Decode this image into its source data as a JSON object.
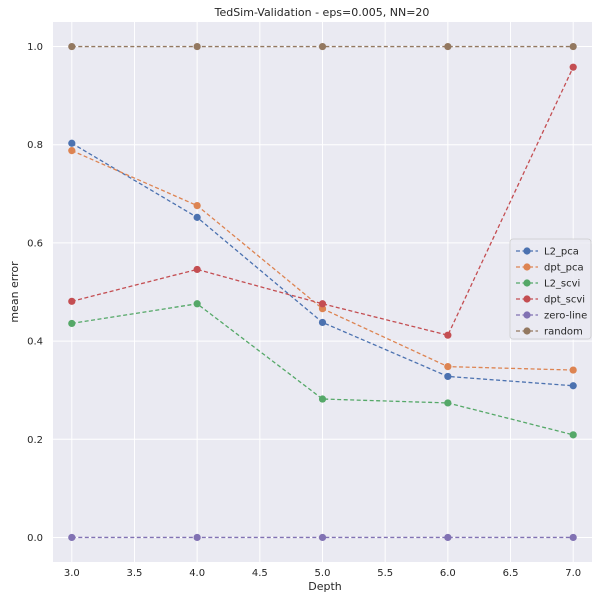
{
  "chart_data": {
    "type": "line",
    "title": "TedSim-Validation - eps=0.005, NN=20",
    "xlabel": "Depth",
    "ylabel": "mean error",
    "xlim": [
      2.85,
      7.15
    ],
    "ylim": [
      -0.05,
      1.05
    ],
    "xticks": [
      3.0,
      3.5,
      4.0,
      4.5,
      5.0,
      5.5,
      6.0,
      6.5,
      7.0
    ],
    "xtick_labels": [
      "3.0",
      "3.5",
      "4.0",
      "4.5",
      "5.0",
      "5.5",
      "6.0",
      "6.5",
      "7.0"
    ],
    "yticks": [
      0.0,
      0.2,
      0.4,
      0.6,
      0.8,
      1.0
    ],
    "ytick_labels": [
      "0.0",
      "0.2",
      "0.4",
      "0.6",
      "0.8",
      "1.0"
    ],
    "grid": true,
    "legend_position": "center-right",
    "x": [
      3,
      4,
      5,
      6,
      7
    ],
    "series": [
      {
        "name": "L2_pca",
        "color": "#4c72b0",
        "values": [
          0.803,
          0.652,
          0.438,
          0.328,
          0.309
        ]
      },
      {
        "name": "dpt_pca",
        "color": "#dd8452",
        "values": [
          0.788,
          0.676,
          0.466,
          0.348,
          0.341
        ]
      },
      {
        "name": "L2_scvi",
        "color": "#55a868",
        "values": [
          0.436,
          0.476,
          0.282,
          0.274,
          0.209
        ]
      },
      {
        "name": "dpt_scvi",
        "color": "#c44e52",
        "values": [
          0.481,
          0.546,
          0.476,
          0.412,
          0.958
        ]
      },
      {
        "name": "zero-line",
        "color": "#8172b3",
        "values": [
          0,
          0,
          0,
          0,
          0
        ]
      },
      {
        "name": "random",
        "color": "#937860",
        "values": [
          1,
          1,
          1,
          1,
          1
        ]
      }
    ]
  }
}
